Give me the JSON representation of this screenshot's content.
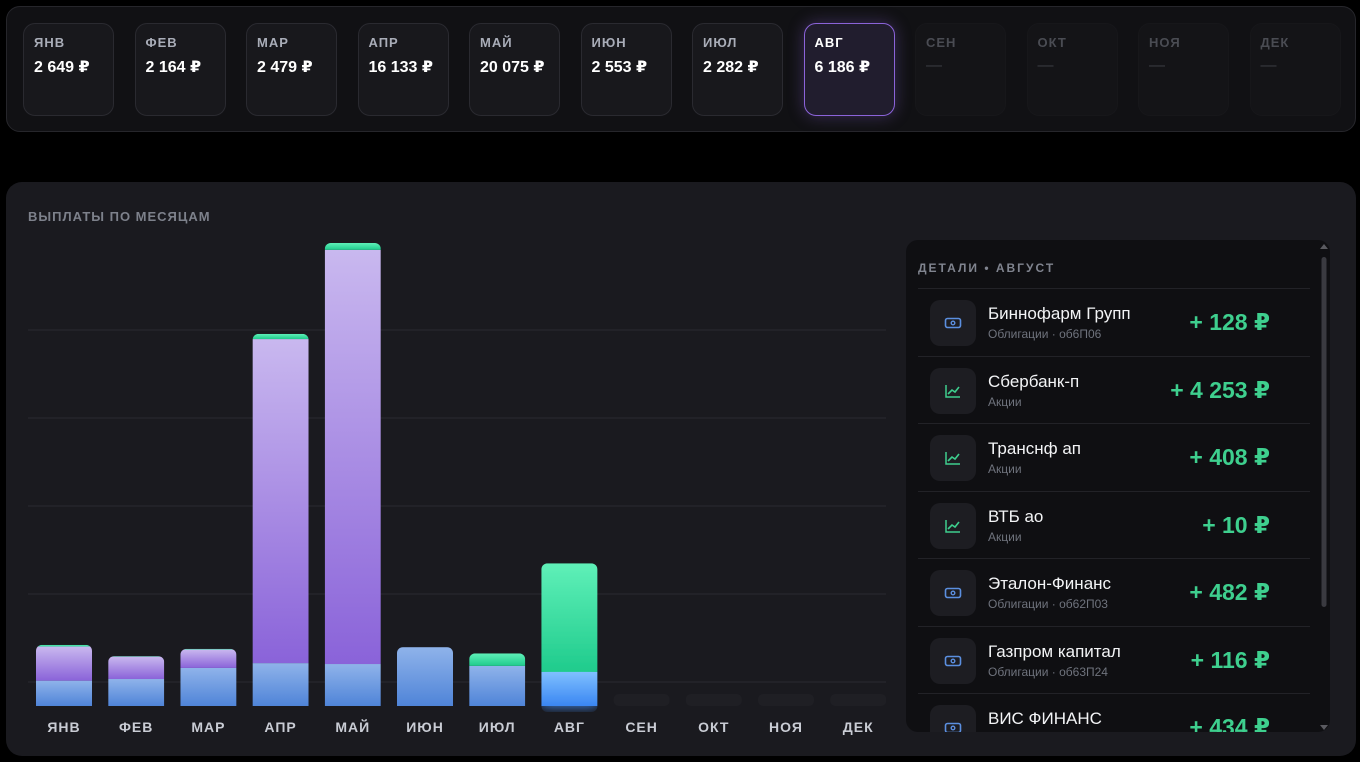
{
  "months": [
    {
      "label": "ЯНВ",
      "value": "2 649 ₽",
      "state": "normal"
    },
    {
      "label": "ФЕВ",
      "value": "2 164 ₽",
      "state": "normal"
    },
    {
      "label": "МАР",
      "value": "2 479 ₽",
      "state": "normal"
    },
    {
      "label": "АПР",
      "value": "16 133 ₽",
      "state": "normal"
    },
    {
      "label": "МАЙ",
      "value": "20 075 ₽",
      "state": "normal"
    },
    {
      "label": "ИЮН",
      "value": "2 553 ₽",
      "state": "normal"
    },
    {
      "label": "ИЮЛ",
      "value": "2 282 ₽",
      "state": "normal"
    },
    {
      "label": "АВГ",
      "value": "6 186 ₽",
      "state": "active"
    },
    {
      "label": "СЕН",
      "value": "—",
      "state": "empty"
    },
    {
      "label": "ОКТ",
      "value": "—",
      "state": "empty"
    },
    {
      "label": "НОЯ",
      "value": "—",
      "state": "empty"
    },
    {
      "label": "ДЕК",
      "value": "—",
      "state": "empty"
    }
  ],
  "panel": {
    "title": "ВЫПЛАТЫ ПО МЕСЯЦАМ"
  },
  "chart_data": {
    "type": "bar",
    "stacked": true,
    "categories": [
      "ЯНВ",
      "ФЕВ",
      "МАР",
      "АПР",
      "МАЙ",
      "ИЮН",
      "ИЮЛ",
      "АВГ",
      "СЕН",
      "ОКТ",
      "НОЯ",
      "ДЕК"
    ],
    "totals": [
      2649,
      2164,
      2479,
      16133,
      20075,
      2553,
      2282,
      6186,
      0,
      0,
      0,
      0
    ],
    "series": [
      {
        "name": "",
        "color": "#5b8fe0",
        "values": [
          1100,
          1170,
          1650,
          1860,
          1820,
          2553,
          1740,
          1480,
          0,
          0,
          0,
          0
        ]
      },
      {
        "name": "",
        "color": "#9b77e3",
        "values": [
          1480,
          974,
          800,
          14050,
          17960,
          0,
          0,
          0,
          0,
          0,
          0,
          0
        ]
      },
      {
        "name": "",
        "color": "#32c88d",
        "values": [
          69,
          20,
          29,
          223,
          295,
          0,
          542,
          4706,
          0,
          0,
          0,
          0
        ]
      }
    ],
    "highlight_index": 7,
    "ylim": [
      0,
      20075
    ],
    "grid": true
  },
  "details": {
    "title": "ДЕТАЛИ • АВГУСТ",
    "items": [
      {
        "name": "Биннофарм Групп",
        "sub": "Облигации · об6П06",
        "amount": "+ 128 ₽",
        "icon": "bond-icon"
      },
      {
        "name": "Сбербанк-п",
        "sub": "Акции",
        "amount": "+ 4 253 ₽",
        "icon": "stock-chart-icon"
      },
      {
        "name": "Транснф ап",
        "sub": "Акции",
        "amount": "+ 408 ₽",
        "icon": "stock-chart-icon"
      },
      {
        "name": "ВТБ ао",
        "sub": "Акции",
        "amount": "+ 10 ₽",
        "icon": "stock-chart-icon"
      },
      {
        "name": "Эталон-Финанс",
        "sub": "Облигации · об62П03",
        "amount": "+ 482 ₽",
        "icon": "bond-icon"
      },
      {
        "name": "Газпром капитал",
        "sub": "Облигации · об63П24",
        "amount": "+ 116 ₽",
        "icon": "bond-icon"
      },
      {
        "name": "ВИС ФИНАНС",
        "sub": "",
        "amount": "+ 434 ₽",
        "icon": "bond-icon"
      }
    ]
  },
  "colors": {
    "accent": "#8b63d9",
    "positive": "#3ecf8e",
    "bond_icon": "#5b8fe0",
    "stock_icon": "#3ecf8e"
  }
}
